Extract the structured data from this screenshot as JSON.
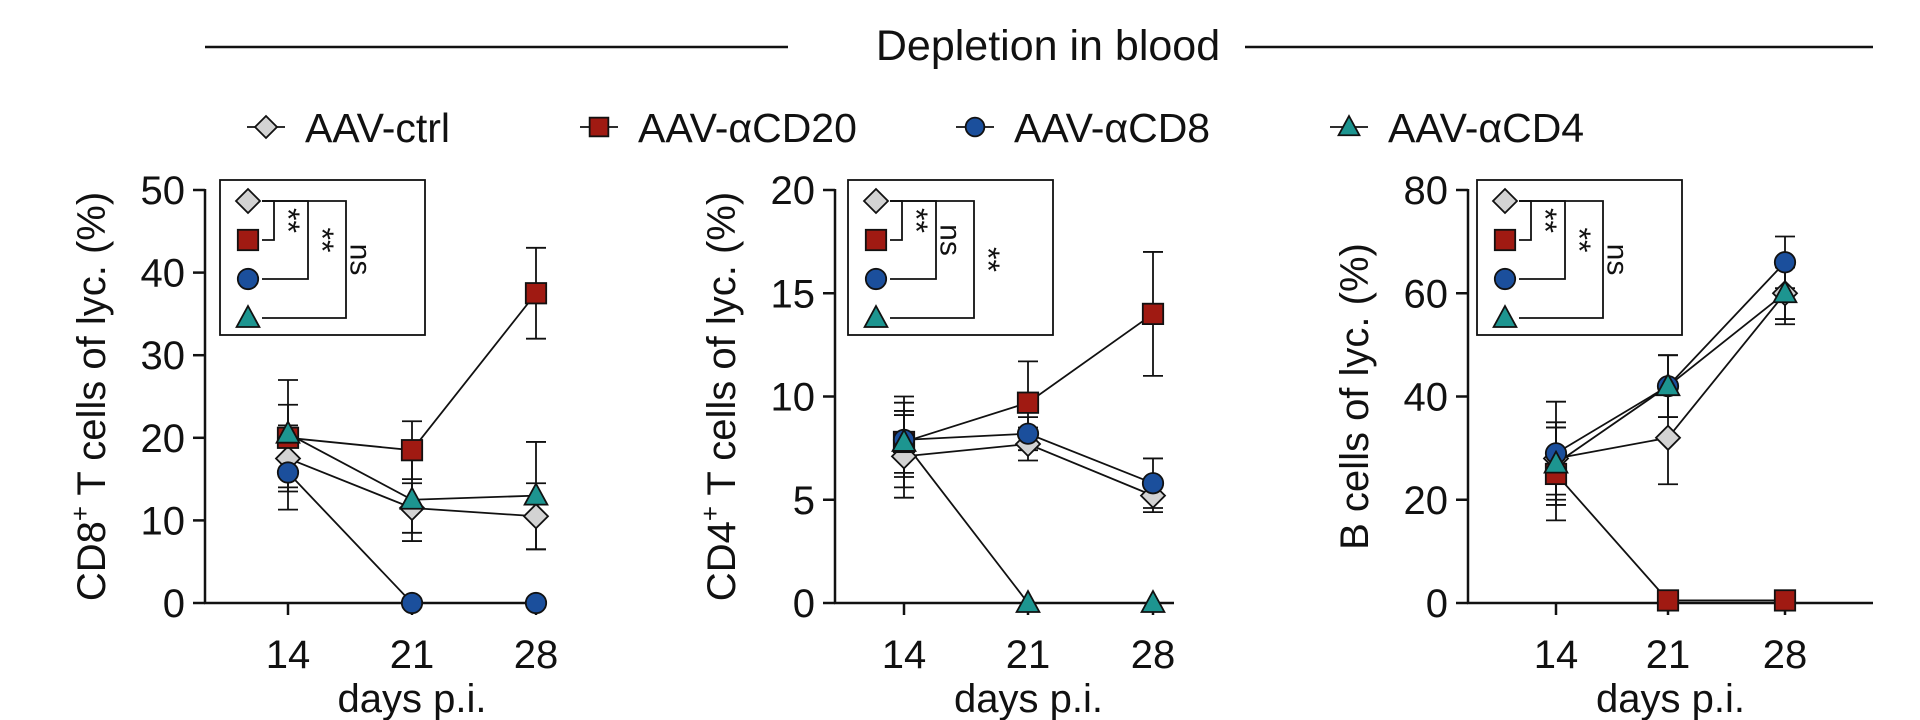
{
  "figure": {
    "title": "Depletion in blood",
    "series_styles": [
      {
        "name": "AAV-ctrl",
        "marker": "diamond",
        "color": "#d3d3d3"
      },
      {
        "name": "AAV-αCD20",
        "marker": "square",
        "color": "#a01a12"
      },
      {
        "name": "AAV-αCD8",
        "marker": "circle",
        "color": "#1b4f9c"
      },
      {
        "name": "AAV-αCD4",
        "marker": "triangle",
        "color": "#1d9590"
      }
    ]
  },
  "chart_data": [
    {
      "type": "line",
      "ylabel_main": "CD8",
      "ylabel_sup": "+",
      "ylabel_rest": " T cells of lyc. (%)",
      "xlabel": "days p.i.",
      "categories": [
        "14",
        "21",
        "28"
      ],
      "ylim": [
        0,
        50
      ],
      "yticks": [
        0,
        10,
        20,
        30,
        40,
        50
      ],
      "series": [
        {
          "name": "AAV-ctrl",
          "values": [
            17.5,
            11.5,
            10.5
          ],
          "errors": [
            4,
            3,
            4
          ]
        },
        {
          "name": "AAV-αCD20",
          "values": [
            20,
            18.5,
            37.5
          ],
          "errors": [
            4,
            3.5,
            5.5
          ]
        },
        {
          "name": "AAV-αCD8",
          "values": [
            15.8,
            0,
            0
          ],
          "errors": [
            4.5,
            0,
            0
          ]
        },
        {
          "name": "AAV-αCD4",
          "values": [
            20.5,
            12.5,
            13
          ],
          "errors": [
            6.5,
            5,
            6.5
          ]
        }
      ],
      "significance": [
        "**",
        "**",
        "ns"
      ]
    },
    {
      "type": "line",
      "ylabel_main": "CD4",
      "ylabel_sup": "+",
      "ylabel_rest": " T cells of lyc. (%)",
      "xlabel": "days p.i.",
      "categories": [
        "14",
        "21",
        "28"
      ],
      "ylim": [
        0,
        20
      ],
      "yticks": [
        0,
        5,
        10,
        15,
        20
      ],
      "series": [
        {
          "name": "AAV-ctrl",
          "values": [
            7.1,
            7.7,
            5.2
          ],
          "errors": [
            2,
            0.8,
            0.8
          ]
        },
        {
          "name": "AAV-αCD20",
          "values": [
            7.8,
            9.7,
            14
          ],
          "errors": [
            2.2,
            2,
            3
          ]
        },
        {
          "name": "AAV-αCD8",
          "values": [
            7.9,
            8.2,
            5.8
          ],
          "errors": [
            1.8,
            0.8,
            1.2
          ]
        },
        {
          "name": "AAV-αCD4",
          "values": [
            7.8,
            0,
            0
          ],
          "errors": [
            1.5,
            0,
            0
          ]
        }
      ],
      "significance": [
        "**",
        "ns",
        "**"
      ]
    },
    {
      "type": "line",
      "ylabel_main": "B cells of lyc. (%)",
      "ylabel_sup": "",
      "ylabel_rest": "",
      "xlabel": "days p.i.",
      "categories": [
        "14",
        "21",
        "28"
      ],
      "ylim": [
        0,
        80
      ],
      "yticks": [
        0,
        20,
        40,
        60,
        80
      ],
      "series": [
        {
          "name": "AAV-ctrl",
          "values": [
            28,
            32,
            60
          ],
          "errors": [
            7,
            9,
            5
          ]
        },
        {
          "name": "AAV-αCD20",
          "values": [
            25,
            0.5,
            0.5
          ],
          "errors": [
            9,
            0,
            0
          ]
        },
        {
          "name": "AAV-αCD8",
          "values": [
            29,
            42,
            66
          ],
          "errors": [
            10,
            6,
            5
          ]
        },
        {
          "name": "AAV-αCD4",
          "values": [
            27,
            42,
            60
          ],
          "errors": [
            7,
            6,
            6
          ]
        }
      ],
      "significance": [
        "**",
        "**",
        "ns"
      ]
    }
  ]
}
